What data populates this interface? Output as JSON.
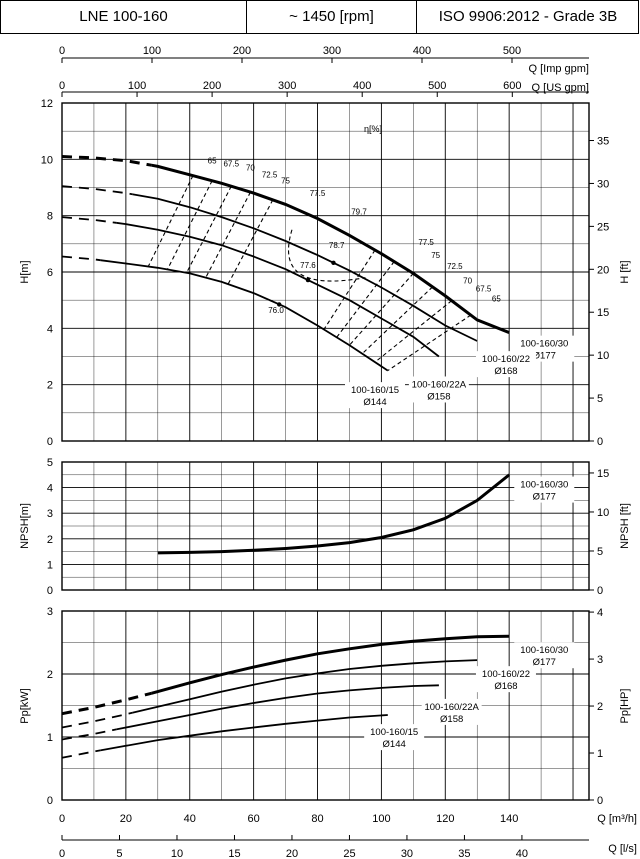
{
  "header": {
    "pump": "LNE 100-160",
    "speed": "~ 1450 [rpm]",
    "standard": "ISO 9906:2012 - Grade 3B"
  },
  "axes": {
    "imp_gpm": {
      "label": "Q [Imp gpm]",
      "ticks": [
        "0",
        "100",
        "200",
        "300",
        "400",
        "500"
      ]
    },
    "us_gpm": {
      "label": "Q [US gpm]",
      "ticks": [
        "0",
        "100",
        "200",
        "300",
        "400",
        "500",
        "600"
      ]
    },
    "q_m3h": {
      "label": "Q [m³/h]",
      "ticks": [
        "0",
        "20",
        "40",
        "60",
        "80",
        "100",
        "120",
        "140"
      ]
    },
    "q_ls": {
      "label": "Q [l/s]",
      "ticks": [
        "0",
        "5",
        "10",
        "15",
        "20",
        "25",
        "30",
        "35",
        "40"
      ]
    },
    "h_m": {
      "label": "H[m]",
      "ticks": [
        "0",
        "2",
        "4",
        "6",
        "8",
        "10",
        "12"
      ]
    },
    "h_ft": {
      "label": "H [ft]",
      "ticks": [
        "0",
        "5",
        "10",
        "15",
        "20",
        "25",
        "30",
        "35"
      ]
    },
    "npsh_m": {
      "label": "NPSH[m]",
      "ticks": [
        "0",
        "1",
        "2",
        "3",
        "4",
        "5"
      ]
    },
    "npsh_ft": {
      "label": "NPSH [ft]",
      "ticks": [
        "0",
        "5",
        "10",
        "15"
      ]
    },
    "p_kw": {
      "label": "Pp[kW]",
      "ticks": [
        "0",
        "1",
        "2",
        "3"
      ]
    },
    "p_hp": {
      "label": "Pp[HP]",
      "ticks": [
        "0",
        "1",
        "2",
        "3",
        "4"
      ]
    },
    "eta_label": "η[%]"
  },
  "chart_data": [
    {
      "type": "line",
      "panel": "head",
      "xlabel": "Q [m³/h]",
      "ylabel": "H[m]",
      "xlim": [
        0,
        165
      ],
      "ylim": [
        0,
        12
      ],
      "grid": true,
      "series": [
        {
          "name": "100-160/30",
          "dia": "Ø177",
          "dashed_until": 28,
          "points": [
            [
              0,
              10.1
            ],
            [
              10,
              10.05
            ],
            [
              20,
              9.95
            ],
            [
              30,
              9.75
            ],
            [
              40,
              9.45
            ],
            [
              50,
              9.15
            ],
            [
              60,
              8.8
            ],
            [
              70,
              8.4
            ],
            [
              80,
              7.9
            ],
            [
              90,
              7.3
            ],
            [
              100,
              6.65
            ],
            [
              110,
              5.95
            ],
            [
              120,
              5.15
            ],
            [
              130,
              4.3
            ],
            [
              140,
              3.85
            ]
          ]
        },
        {
          "name": "100-160/22",
          "dia": "Ø168",
          "dashed_until": 22,
          "points": [
            [
              0,
              9.05
            ],
            [
              10,
              8.95
            ],
            [
              20,
              8.8
            ],
            [
              30,
              8.6
            ],
            [
              40,
              8.3
            ],
            [
              50,
              7.95
            ],
            [
              60,
              7.55
            ],
            [
              70,
              7.1
            ],
            [
              80,
              6.6
            ],
            [
              90,
              6.05
            ],
            [
              100,
              5.45
            ],
            [
              110,
              4.8
            ],
            [
              120,
              4.1
            ],
            [
              130,
              3.55
            ]
          ]
        },
        {
          "name": "100-160/22A",
          "dia": "Ø158",
          "dashed_until": 17,
          "points": [
            [
              0,
              7.95
            ],
            [
              10,
              7.85
            ],
            [
              20,
              7.7
            ],
            [
              30,
              7.5
            ],
            [
              40,
              7.25
            ],
            [
              50,
              6.95
            ],
            [
              60,
              6.55
            ],
            [
              70,
              6.1
            ],
            [
              80,
              5.55
            ],
            [
              90,
              5.0
            ],
            [
              100,
              4.35
            ],
            [
              110,
              3.7
            ],
            [
              118,
              3.0
            ]
          ]
        },
        {
          "name": "100-160/15",
          "dia": "Ø144",
          "dashed_until": 12,
          "points": [
            [
              0,
              6.55
            ],
            [
              10,
              6.45
            ],
            [
              20,
              6.3
            ],
            [
              30,
              6.15
            ],
            [
              40,
              5.95
            ],
            [
              50,
              5.65
            ],
            [
              60,
              5.25
            ],
            [
              70,
              4.75
            ],
            [
              80,
              4.1
            ],
            [
              90,
              3.4
            ],
            [
              102,
              2.5
            ]
          ]
        }
      ],
      "efficiency_labels": [
        "65",
        "67.5",
        "70",
        "72.5",
        "75",
        "77.5",
        "79.7",
        "78.7",
        "77.6",
        "76.0",
        "77.5",
        "75",
        "72.5",
        "70",
        "67.5",
        "65"
      ]
    },
    {
      "type": "line",
      "panel": "npsh",
      "xlabel": "Q [m³/h]",
      "ylabel": "NPSH[m]",
      "xlim": [
        0,
        165
      ],
      "ylim": [
        0,
        5
      ],
      "grid": true,
      "series": [
        {
          "name": "100-160/30",
          "dia": "Ø177",
          "points": [
            [
              30,
              1.45
            ],
            [
              40,
              1.47
            ],
            [
              50,
              1.5
            ],
            [
              60,
              1.55
            ],
            [
              70,
              1.62
            ],
            [
              80,
              1.72
            ],
            [
              90,
              1.85
            ],
            [
              100,
              2.05
            ],
            [
              110,
              2.35
            ],
            [
              120,
              2.8
            ],
            [
              130,
              3.5
            ],
            [
              140,
              4.5
            ]
          ]
        }
      ]
    },
    {
      "type": "line",
      "panel": "power",
      "xlabel": "Q [m³/h]",
      "ylabel": "Pp[kW]",
      "xlim": [
        0,
        165
      ],
      "ylim": [
        0,
        3
      ],
      "grid": true,
      "series": [
        {
          "name": "100-160/30",
          "dia": "Ø177",
          "dashed_until": 28,
          "points": [
            [
              0,
              1.37
            ],
            [
              10,
              1.47
            ],
            [
              20,
              1.59
            ],
            [
              30,
              1.72
            ],
            [
              40,
              1.86
            ],
            [
              50,
              1.99
            ],
            [
              60,
              2.11
            ],
            [
              70,
              2.22
            ],
            [
              80,
              2.32
            ],
            [
              90,
              2.4
            ],
            [
              100,
              2.47
            ],
            [
              110,
              2.52
            ],
            [
              120,
              2.56
            ],
            [
              130,
              2.59
            ],
            [
              140,
              2.6
            ]
          ]
        },
        {
          "name": "100-160/22",
          "dia": "Ø168",
          "dashed_until": 22,
          "points": [
            [
              0,
              1.15
            ],
            [
              10,
              1.25
            ],
            [
              20,
              1.36
            ],
            [
              30,
              1.48
            ],
            [
              40,
              1.6
            ],
            [
              50,
              1.72
            ],
            [
              60,
              1.83
            ],
            [
              70,
              1.93
            ],
            [
              80,
              2.01
            ],
            [
              90,
              2.08
            ],
            [
              100,
              2.13
            ],
            [
              110,
              2.17
            ],
            [
              120,
              2.2
            ],
            [
              130,
              2.22
            ]
          ]
        },
        {
          "name": "100-160/22A",
          "dia": "Ø158",
          "dashed_until": 17,
          "points": [
            [
              0,
              0.96
            ],
            [
              10,
              1.05
            ],
            [
              20,
              1.15
            ],
            [
              30,
              1.25
            ],
            [
              40,
              1.35
            ],
            [
              50,
              1.45
            ],
            [
              60,
              1.54
            ],
            [
              70,
              1.62
            ],
            [
              80,
              1.69
            ],
            [
              90,
              1.74
            ],
            [
              100,
              1.78
            ],
            [
              110,
              1.81
            ],
            [
              118,
              1.82
            ]
          ]
        },
        {
          "name": "100-160/15",
          "dia": "Ø144",
          "dashed_until": 12,
          "points": [
            [
              0,
              0.67
            ],
            [
              10,
              0.77
            ],
            [
              20,
              0.86
            ],
            [
              30,
              0.95
            ],
            [
              40,
              1.02
            ],
            [
              50,
              1.09
            ],
            [
              60,
              1.15
            ],
            [
              70,
              1.21
            ],
            [
              80,
              1.26
            ],
            [
              90,
              1.31
            ],
            [
              102,
              1.35
            ]
          ]
        }
      ]
    }
  ]
}
